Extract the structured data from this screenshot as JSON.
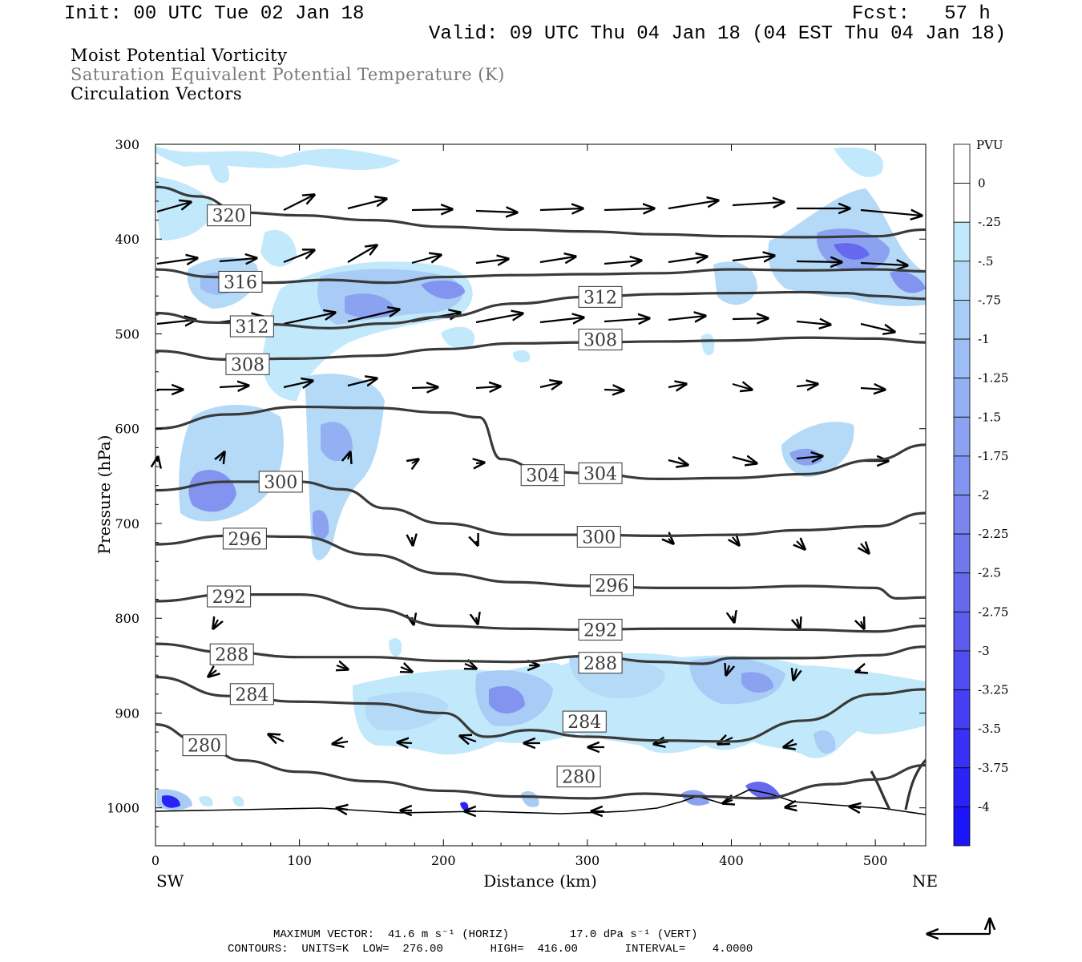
{
  "header": {
    "init": "Init: 00 UTC Tue 02 Jan 18",
    "fcst": "Fcst:   57 h",
    "valid": "Valid: 09 UTC Thu 04 Jan 18 (04 EST Thu 04 Jan 18)"
  },
  "fields": {
    "line1": "Moist Potential Vorticity",
    "line2": "Saturation Equivalent Potential Temperature (K)",
    "line3": "Circulation Vectors"
  },
  "axes": {
    "ylabel": "Pressure (hPa)",
    "xlabel": "Distance (km)",
    "left_end": "SW",
    "right_end": "NE"
  },
  "colorbar": {
    "unit": "PVU",
    "labels": [
      "0",
      "-.25",
      "-.5",
      "-.75",
      "-1",
      "-1.25",
      "-1.5",
      "-1.75",
      "-2",
      "-2.25",
      "-2.5",
      "-2.75",
      "-3",
      "-3.25",
      "-3.5",
      "-3.75",
      "-4"
    ],
    "colors": [
      "#ffffff",
      "#ffffff",
      "#c2e8fb",
      "#b4daf8",
      "#a8ccf6",
      "#9cbef4",
      "#93b0f2",
      "#8aa2f0",
      "#8294ef",
      "#7a86ee",
      "#7078ed",
      "#6669ed",
      "#5c5bee",
      "#514cf0",
      "#453ef2",
      "#3830f4",
      "#2a22f6",
      "#1a14f8"
    ]
  },
  "chart_data": {
    "type": "contour",
    "xlim": [
      0,
      535
    ],
    "ylim": [
      300,
      1040
    ],
    "x_ticks": [
      0,
      100,
      200,
      300,
      400,
      500
    ],
    "y_ticks": [
      300,
      400,
      500,
      600,
      700,
      800,
      900,
      1000
    ],
    "contours": [
      {
        "level": "320",
        "points": [
          [
            0,
            345
          ],
          [
            30,
            355
          ],
          [
            60,
            372
          ],
          [
            100,
            375
          ],
          [
            150,
            380
          ],
          [
            200,
            387
          ],
          [
            250,
            390
          ],
          [
            300,
            392
          ],
          [
            350,
            395
          ],
          [
            400,
            397
          ],
          [
            450,
            398
          ],
          [
            500,
            397
          ],
          [
            535,
            390
          ]
        ],
        "labels": [
          [
            51,
            375
          ]
        ]
      },
      {
        "level": "316",
        "points": [
          [
            0,
            432
          ],
          [
            40,
            440
          ],
          [
            80,
            446
          ],
          [
            120,
            443
          ],
          [
            160,
            446
          ],
          [
            200,
            440
          ],
          [
            250,
            438
          ],
          [
            300,
            437
          ],
          [
            350,
            436
          ],
          [
            400,
            432
          ],
          [
            450,
            433
          ],
          [
            500,
            432
          ],
          [
            535,
            434
          ]
        ],
        "labels": [
          [
            59,
            445
          ]
        ]
      },
      {
        "level": "312",
        "points": [
          [
            0,
            478
          ],
          [
            40,
            488
          ],
          [
            80,
            490
          ],
          [
            120,
            494
          ],
          [
            160,
            489
          ],
          [
            200,
            482
          ],
          [
            250,
            468
          ],
          [
            300,
            461
          ],
          [
            350,
            458
          ],
          [
            400,
            457
          ],
          [
            450,
            456
          ],
          [
            480,
            457
          ],
          [
            500,
            460
          ],
          [
            535,
            463
          ]
        ],
        "labels": [
          [
            67,
            492
          ],
          [
            309,
            461
          ]
        ]
      },
      {
        "level": "308",
        "points": [
          [
            0,
            518
          ],
          [
            50,
            527
          ],
          [
            100,
            526
          ],
          [
            150,
            523
          ],
          [
            200,
            516
          ],
          [
            250,
            510
          ],
          [
            300,
            509
          ],
          [
            350,
            508
          ],
          [
            400,
            507
          ],
          [
            450,
            504
          ],
          [
            500,
            505
          ],
          [
            535,
            509
          ]
        ],
        "labels": [
          [
            64,
            532
          ],
          [
            309,
            506
          ]
        ]
      },
      {
        "level": "304",
        "points": [
          [
            0,
            600
          ],
          [
            50,
            585
          ],
          [
            100,
            577
          ],
          [
            150,
            578
          ],
          [
            200,
            583
          ],
          [
            225,
            588
          ],
          [
            240,
            632
          ],
          [
            270,
            645
          ],
          [
            300,
            647
          ],
          [
            350,
            653
          ],
          [
            400,
            652
          ],
          [
            450,
            648
          ],
          [
            500,
            633
          ],
          [
            535,
            617
          ]
        ],
        "labels": [
          [
            269,
            649
          ],
          [
            309,
            647
          ]
        ]
      },
      {
        "level": "300",
        "points": [
          [
            0,
            665
          ],
          [
            50,
            656
          ],
          [
            100,
            656
          ],
          [
            130,
            664
          ],
          [
            160,
            684
          ],
          [
            200,
            700
          ],
          [
            250,
            712
          ],
          [
            300,
            712
          ],
          [
            350,
            713
          ],
          [
            400,
            712
          ],
          [
            450,
            707
          ],
          [
            500,
            703
          ],
          [
            535,
            689
          ]
        ],
        "labels": [
          [
            87,
            656
          ],
          [
            308,
            714
          ]
        ]
      },
      {
        "level": "296",
        "points": [
          [
            0,
            722
          ],
          [
            50,
            713
          ],
          [
            100,
            714
          ],
          [
            150,
            733
          ],
          [
            200,
            753
          ],
          [
            250,
            762
          ],
          [
            300,
            766
          ],
          [
            350,
            768
          ],
          [
            400,
            768
          ],
          [
            450,
            766
          ],
          [
            500,
            768
          ],
          [
            515,
            779
          ],
          [
            535,
            778
          ]
        ],
        "labels": [
          [
            62,
            716
          ],
          [
            317,
            765
          ]
        ]
      },
      {
        "level": "292",
        "points": [
          [
            0,
            782
          ],
          [
            50,
            775
          ],
          [
            100,
            775
          ],
          [
            150,
            790
          ],
          [
            200,
            808
          ],
          [
            250,
            811
          ],
          [
            300,
            812
          ],
          [
            350,
            811
          ],
          [
            400,
            811
          ],
          [
            450,
            812
          ],
          [
            500,
            814
          ],
          [
            535,
            808
          ]
        ],
        "labels": [
          [
            51,
            777
          ],
          [
            309,
            812
          ]
        ]
      },
      {
        "level": "288",
        "points": [
          [
            0,
            827
          ],
          [
            50,
            836
          ],
          [
            100,
            841
          ],
          [
            150,
            841
          ],
          [
            200,
            845
          ],
          [
            250,
            846
          ],
          [
            300,
            840
          ],
          [
            350,
            846
          ],
          [
            380,
            848
          ],
          [
            400,
            842
          ],
          [
            450,
            842
          ],
          [
            500,
            839
          ],
          [
            535,
            830
          ]
        ],
        "labels": [
          [
            53,
            838
          ],
          [
            309,
            847
          ]
        ]
      },
      {
        "level": "284",
        "points": [
          [
            0,
            862
          ],
          [
            50,
            882
          ],
          [
            100,
            888
          ],
          [
            150,
            890
          ],
          [
            200,
            900
          ],
          [
            230,
            925
          ],
          [
            260,
            918
          ],
          [
            300,
            925
          ],
          [
            350,
            929
          ],
          [
            400,
            930
          ],
          [
            450,
            908
          ],
          [
            500,
            880
          ],
          [
            535,
            875
          ]
        ],
        "labels": [
          [
            67,
            880
          ],
          [
            298,
            909
          ]
        ]
      },
      {
        "level": "280",
        "points": [
          [
            0,
            912
          ],
          [
            30,
            930
          ],
          [
            60,
            950
          ],
          [
            100,
            962
          ],
          [
            150,
            972
          ],
          [
            200,
            982
          ],
          [
            250,
            988
          ],
          [
            300,
            990
          ],
          [
            340,
            985
          ],
          [
            380,
            988
          ],
          [
            420,
            990
          ],
          [
            470,
            975
          ],
          [
            500,
            970
          ],
          [
            535,
            955
          ]
        ],
        "labels": [
          [
            34,
            934
          ],
          [
            294,
            967
          ]
        ]
      }
    ]
  },
  "footer": {
    "line1": "MAXIMUM VECTOR:  41.6 m s⁻¹ (HORIZ)         17.0 dPa s⁻¹ (VERT)",
    "line2": "CONTOURS:  UNITS=K  LOW=  276.00       HIGH=  416.00       INTERVAL=    4.0000"
  }
}
